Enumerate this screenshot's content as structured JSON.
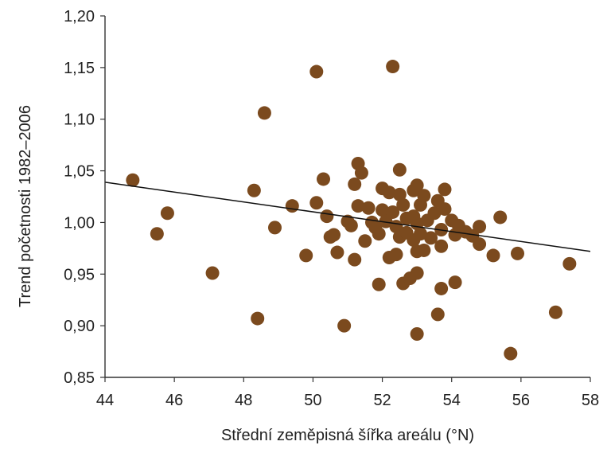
{
  "chart_data": {
    "type": "scatter",
    "title": "",
    "xlabel": "Střední zeměpisná šířka areálu (°N)",
    "ylabel": "Trend početnosti 1982–2006",
    "xlim": [
      44,
      58
    ],
    "ylim": [
      0.85,
      1.2
    ],
    "x_ticks": [
      44,
      46,
      48,
      50,
      52,
      54,
      56,
      58
    ],
    "x_tick_labels": [
      "44",
      "46",
      "48",
      "50",
      "52",
      "54",
      "56",
      "58"
    ],
    "y_ticks": [
      0.85,
      0.9,
      0.95,
      1.0,
      1.05,
      1.1,
      1.15,
      1.2
    ],
    "y_tick_labels": [
      "0,85",
      "0,90",
      "0,95",
      "1,00",
      "1,05",
      "1,10",
      "1,15",
      "1,20"
    ],
    "grid": false,
    "colors": {
      "points": "#7b4a1e",
      "line": "#111111",
      "axis": "#333333"
    },
    "trend_line": {
      "x": [
        44,
        58
      ],
      "y": [
        1.039,
        0.972
      ]
    },
    "points": [
      {
        "x": 44.8,
        "y": 1.041
      },
      {
        "x": 45.5,
        "y": 0.989
      },
      {
        "x": 45.8,
        "y": 1.009
      },
      {
        "x": 47.1,
        "y": 0.951
      },
      {
        "x": 48.3,
        "y": 1.031
      },
      {
        "x": 48.4,
        "y": 0.907
      },
      {
        "x": 48.6,
        "y": 1.106
      },
      {
        "x": 48.9,
        "y": 0.995
      },
      {
        "x": 49.4,
        "y": 1.016
      },
      {
        "x": 49.8,
        "y": 0.968
      },
      {
        "x": 50.1,
        "y": 1.146
      },
      {
        "x": 50.1,
        "y": 1.019
      },
      {
        "x": 50.3,
        "y": 1.042
      },
      {
        "x": 50.4,
        "y": 1.006
      },
      {
        "x": 50.5,
        "y": 0.986
      },
      {
        "x": 50.6,
        "y": 0.988
      },
      {
        "x": 50.7,
        "y": 0.971
      },
      {
        "x": 50.9,
        "y": 0.9
      },
      {
        "x": 51.0,
        "y": 1.001
      },
      {
        "x": 51.1,
        "y": 0.997
      },
      {
        "x": 51.2,
        "y": 1.037
      },
      {
        "x": 51.2,
        "y": 0.964
      },
      {
        "x": 51.3,
        "y": 1.057
      },
      {
        "x": 51.3,
        "y": 1.016
      },
      {
        "x": 51.4,
        "y": 1.048
      },
      {
        "x": 51.5,
        "y": 0.982
      },
      {
        "x": 51.6,
        "y": 1.014
      },
      {
        "x": 51.7,
        "y": 1.0
      },
      {
        "x": 51.8,
        "y": 0.995
      },
      {
        "x": 51.9,
        "y": 0.989
      },
      {
        "x": 51.9,
        "y": 0.94
      },
      {
        "x": 52.0,
        "y": 1.033
      },
      {
        "x": 52.0,
        "y": 1.012
      },
      {
        "x": 52.1,
        "y": 1.001
      },
      {
        "x": 52.2,
        "y": 1.029
      },
      {
        "x": 52.2,
        "y": 0.966
      },
      {
        "x": 52.3,
        "y": 1.151
      },
      {
        "x": 52.3,
        "y": 1.01
      },
      {
        "x": 52.4,
        "y": 0.996
      },
      {
        "x": 52.4,
        "y": 0.969
      },
      {
        "x": 52.5,
        "y": 1.051
      },
      {
        "x": 52.5,
        "y": 1.027
      },
      {
        "x": 52.5,
        "y": 0.986
      },
      {
        "x": 52.6,
        "y": 1.017
      },
      {
        "x": 52.6,
        "y": 0.941
      },
      {
        "x": 52.7,
        "y": 1.004
      },
      {
        "x": 52.7,
        "y": 0.99
      },
      {
        "x": 52.8,
        "y": 0.946
      },
      {
        "x": 52.9,
        "y": 1.031
      },
      {
        "x": 52.9,
        "y": 1.006
      },
      {
        "x": 52.9,
        "y": 0.983
      },
      {
        "x": 53.0,
        "y": 1.036
      },
      {
        "x": 53.0,
        "y": 0.999
      },
      {
        "x": 53.0,
        "y": 0.972
      },
      {
        "x": 53.0,
        "y": 0.951
      },
      {
        "x": 53.0,
        "y": 0.892
      },
      {
        "x": 53.1,
        "y": 1.017
      },
      {
        "x": 53.1,
        "y": 0.989
      },
      {
        "x": 53.2,
        "y": 1.026
      },
      {
        "x": 53.2,
        "y": 0.973
      },
      {
        "x": 53.3,
        "y": 1.002
      },
      {
        "x": 53.4,
        "y": 0.985
      },
      {
        "x": 53.5,
        "y": 1.009
      },
      {
        "x": 53.6,
        "y": 1.021
      },
      {
        "x": 53.6,
        "y": 0.911
      },
      {
        "x": 53.7,
        "y": 0.993
      },
      {
        "x": 53.7,
        "y": 0.977
      },
      {
        "x": 53.7,
        "y": 0.936
      },
      {
        "x": 53.8,
        "y": 1.032
      },
      {
        "x": 53.8,
        "y": 1.013
      },
      {
        "x": 54.0,
        "y": 1.002
      },
      {
        "x": 54.1,
        "y": 0.988
      },
      {
        "x": 54.1,
        "y": 0.942
      },
      {
        "x": 54.2,
        "y": 0.997
      },
      {
        "x": 54.4,
        "y": 0.991
      },
      {
        "x": 54.6,
        "y": 0.987
      },
      {
        "x": 54.8,
        "y": 0.996
      },
      {
        "x": 54.8,
        "y": 0.979
      },
      {
        "x": 55.2,
        "y": 0.968
      },
      {
        "x": 55.4,
        "y": 1.005
      },
      {
        "x": 55.7,
        "y": 0.873
      },
      {
        "x": 55.9,
        "y": 0.97
      },
      {
        "x": 57.0,
        "y": 0.913
      },
      {
        "x": 57.4,
        "y": 0.96
      }
    ]
  }
}
